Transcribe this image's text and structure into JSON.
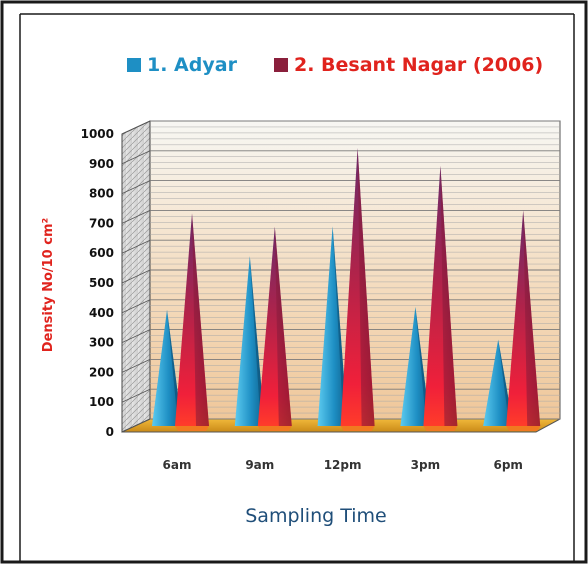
{
  "chart_data": {
    "type": "bar",
    "categories": [
      "6am",
      "9am",
      "12pm",
      "3pm",
      "6pm"
    ],
    "series": [
      {
        "name": "1. Adyar",
        "values": [
          410,
          590,
          690,
          420,
          310
        ]
      },
      {
        "name": "2. Besant Nagar (2006)",
        "values": [
          690,
          645,
          910,
          850,
          700
        ]
      }
    ],
    "xlabel": "Sampling Time",
    "ylabel": "Density No/10 cm²",
    "ylim": [
      0,
      1000
    ],
    "yticks": [
      "0",
      "100",
      "200",
      "300",
      "400",
      "500",
      "600",
      "700",
      "800",
      "900",
      "1000"
    ],
    "legend_position": "top",
    "grid": true,
    "colors": {
      "series1": "#1e8fc4",
      "series2": "#a8264a",
      "floor": "#e8a320",
      "ylabel": "#e0231d",
      "xlabel": "#1f4e79"
    }
  }
}
